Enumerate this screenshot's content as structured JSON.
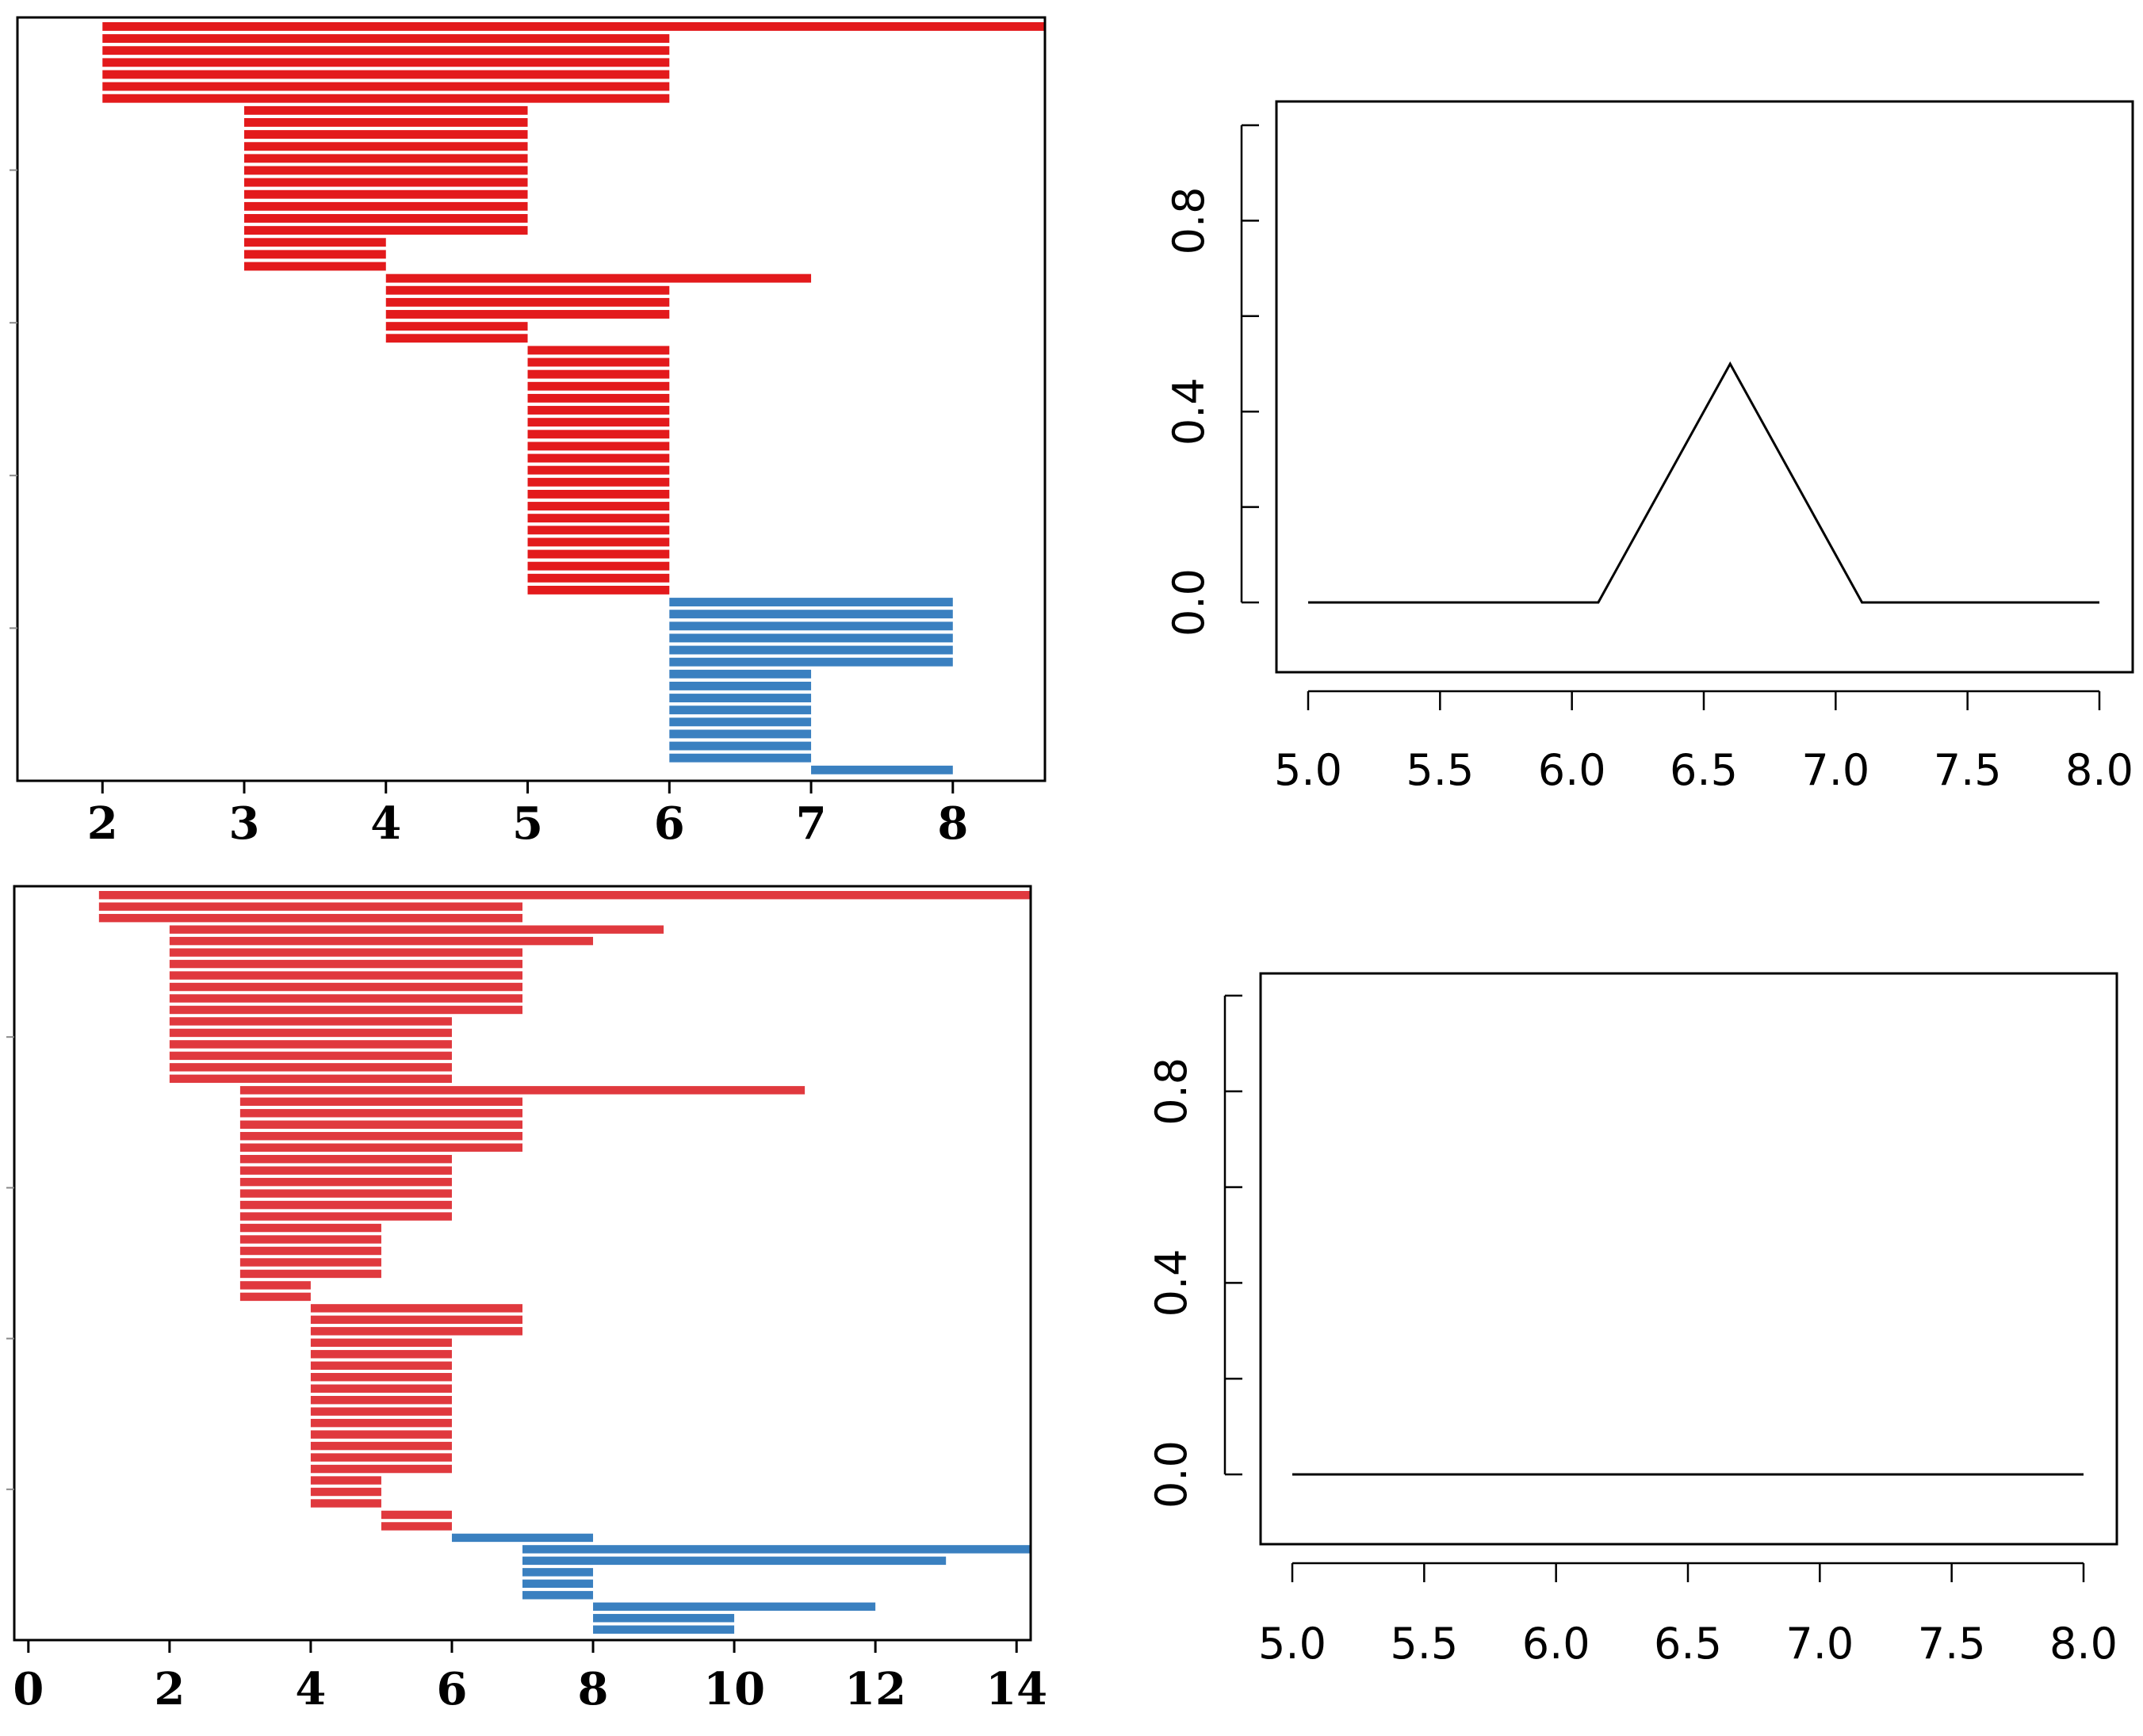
{
  "colors": {
    "red": "#e31a1c",
    "red_light": "#e0393e",
    "blue": "#3a80c0",
    "axis": "#000000",
    "background": "#ffffff"
  },
  "chart_data": [
    {
      "id": "top-left",
      "type": "bar",
      "orientation": "horizontal-intervals",
      "title": "",
      "xlabel": "",
      "ylabel": "",
      "xlim": [
        1.4,
        8.65
      ],
      "x_ticks": [
        2,
        3,
        4,
        5,
        6,
        7,
        8
      ],
      "x_tick_labels": [
        "2",
        "3",
        "4",
        "5",
        "6",
        "7",
        "8"
      ],
      "series": [
        {
          "name": "red",
          "color": "red",
          "intervals": [
            [
              2,
              8.65
            ],
            [
              2,
              6
            ],
            [
              2,
              6
            ],
            [
              2,
              6
            ],
            [
              2,
              6
            ],
            [
              2,
              6
            ],
            [
              2,
              6
            ],
            [
              3,
              5
            ],
            [
              3,
              5
            ],
            [
              3,
              5
            ],
            [
              3,
              5
            ],
            [
              3,
              5
            ],
            [
              3,
              5
            ],
            [
              3,
              5
            ],
            [
              3,
              5
            ],
            [
              3,
              5
            ],
            [
              3,
              5
            ],
            [
              3,
              5
            ],
            [
              3,
              4
            ],
            [
              3,
              4
            ],
            [
              3,
              4
            ],
            [
              4,
              7
            ],
            [
              4,
              6
            ],
            [
              4,
              6
            ],
            [
              4,
              6
            ],
            [
              4,
              5
            ],
            [
              4,
              5
            ],
            [
              5,
              6
            ],
            [
              5,
              6
            ],
            [
              5,
              6
            ],
            [
              5,
              6
            ],
            [
              5,
              6
            ],
            [
              5,
              6
            ],
            [
              5,
              6
            ],
            [
              5,
              6
            ],
            [
              5,
              6
            ],
            [
              5,
              6
            ],
            [
              5,
              6
            ],
            [
              5,
              6
            ],
            [
              5,
              6
            ],
            [
              5,
              6
            ],
            [
              5,
              6
            ],
            [
              5,
              6
            ],
            [
              5,
              6
            ],
            [
              5,
              6
            ],
            [
              5,
              6
            ],
            [
              5,
              6
            ],
            [
              5,
              6
            ]
          ]
        },
        {
          "name": "blue",
          "color": "blue",
          "intervals": [
            [
              6,
              8
            ],
            [
              6,
              8
            ],
            [
              6,
              8
            ],
            [
              6,
              8
            ],
            [
              6,
              8
            ],
            [
              6,
              8
            ],
            [
              6,
              7
            ],
            [
              6,
              7
            ],
            [
              6,
              7
            ],
            [
              6,
              7
            ],
            [
              6,
              7
            ],
            [
              6,
              7
            ],
            [
              6,
              7
            ],
            [
              6,
              7
            ],
            [
              7,
              8
            ]
          ]
        }
      ]
    },
    {
      "id": "top-right",
      "type": "line",
      "title": "",
      "xlabel": "",
      "ylabel": "",
      "xlim": [
        4.88,
        8.0
      ],
      "ylim": [
        -0.14,
        1.0
      ],
      "x_ticks": [
        5.0,
        5.5,
        6.0,
        6.5,
        7.0,
        7.5,
        8.0
      ],
      "x_tick_labels": [
        "5.0",
        "5.5",
        "6.0",
        "6.5",
        "7.0",
        "7.5",
        "8.0"
      ],
      "y_ticks": [
        0.0,
        0.2,
        0.4,
        0.6,
        0.8,
        1.0
      ],
      "y_tick_labels": [
        "0.0",
        "",
        "0.4",
        "",
        "0.8",
        ""
      ],
      "series": [
        {
          "name": "line",
          "x": [
            5.0,
            6.1,
            6.6,
            7.1,
            8.0
          ],
          "y": [
            0.0,
            0.0,
            0.5,
            0.0,
            0.0
          ]
        }
      ]
    },
    {
      "id": "bottom-left",
      "type": "bar",
      "orientation": "horizontal-intervals",
      "title": "",
      "xlabel": "",
      "ylabel": "",
      "xlim": [
        -0.2,
        14.2
      ],
      "x_ticks": [
        0,
        2,
        4,
        6,
        8,
        10,
        12,
        14
      ],
      "x_tick_labels": [
        "0",
        "2",
        "4",
        "6",
        "8",
        "10",
        "12",
        "14"
      ],
      "series": [
        {
          "name": "red",
          "color": "red_light",
          "intervals": [
            [
              1,
              14.2
            ],
            [
              1,
              7
            ],
            [
              1,
              7
            ],
            [
              2,
              9
            ],
            [
              2,
              8
            ],
            [
              2,
              7
            ],
            [
              2,
              7
            ],
            [
              2,
              7
            ],
            [
              2,
              7
            ],
            [
              2,
              7
            ],
            [
              2,
              7
            ],
            [
              2,
              6
            ],
            [
              2,
              6
            ],
            [
              2,
              6
            ],
            [
              2,
              6
            ],
            [
              2,
              6
            ],
            [
              2,
              6
            ],
            [
              3,
              11
            ],
            [
              3,
              7
            ],
            [
              3,
              7
            ],
            [
              3,
              7
            ],
            [
              3,
              7
            ],
            [
              3,
              7
            ],
            [
              3,
              6
            ],
            [
              3,
              6
            ],
            [
              3,
              6
            ],
            [
              3,
              6
            ],
            [
              3,
              6
            ],
            [
              3,
              6
            ],
            [
              3,
              5
            ],
            [
              3,
              5
            ],
            [
              3,
              5
            ],
            [
              3,
              5
            ],
            [
              3,
              5
            ],
            [
              3,
              4
            ],
            [
              3,
              4
            ],
            [
              4,
              7
            ],
            [
              4,
              7
            ],
            [
              4,
              7
            ],
            [
              4,
              6
            ],
            [
              4,
              6
            ],
            [
              4,
              6
            ],
            [
              4,
              6
            ],
            [
              4,
              6
            ],
            [
              4,
              6
            ],
            [
              4,
              6
            ],
            [
              4,
              6
            ],
            [
              4,
              6
            ],
            [
              4,
              6
            ],
            [
              4,
              6
            ],
            [
              4,
              6
            ],
            [
              4,
              5
            ],
            [
              4,
              5
            ],
            [
              4,
              5
            ],
            [
              5,
              6
            ],
            [
              5,
              6
            ]
          ]
        },
        {
          "name": "blue",
          "color": "blue",
          "intervals": [
            [
              6,
              8
            ],
            [
              7,
              14.2
            ],
            [
              7,
              13
            ],
            [
              7,
              8
            ],
            [
              7,
              8
            ],
            [
              7,
              8
            ],
            [
              8,
              12
            ],
            [
              8,
              10
            ],
            [
              8,
              10
            ]
          ]
        }
      ]
    },
    {
      "id": "bottom-right",
      "type": "line",
      "title": "",
      "xlabel": "",
      "ylabel": "",
      "xlim": [
        4.88,
        8.0
      ],
      "ylim": [
        -0.14,
        1.0
      ],
      "x_ticks": [
        5.0,
        5.5,
        6.0,
        6.5,
        7.0,
        7.5,
        8.0
      ],
      "x_tick_labels": [
        "5.0",
        "5.5",
        "6.0",
        "6.5",
        "7.0",
        "7.5",
        "8.0"
      ],
      "y_ticks": [
        0.0,
        0.2,
        0.4,
        0.6,
        0.8,
        1.0
      ],
      "y_tick_labels": [
        "0.0",
        "",
        "0.4",
        "",
        "0.8",
        ""
      ],
      "series": [
        {
          "name": "line",
          "x": [
            5.0,
            8.0
          ],
          "y": [
            0.0,
            0.0
          ]
        }
      ]
    }
  ]
}
